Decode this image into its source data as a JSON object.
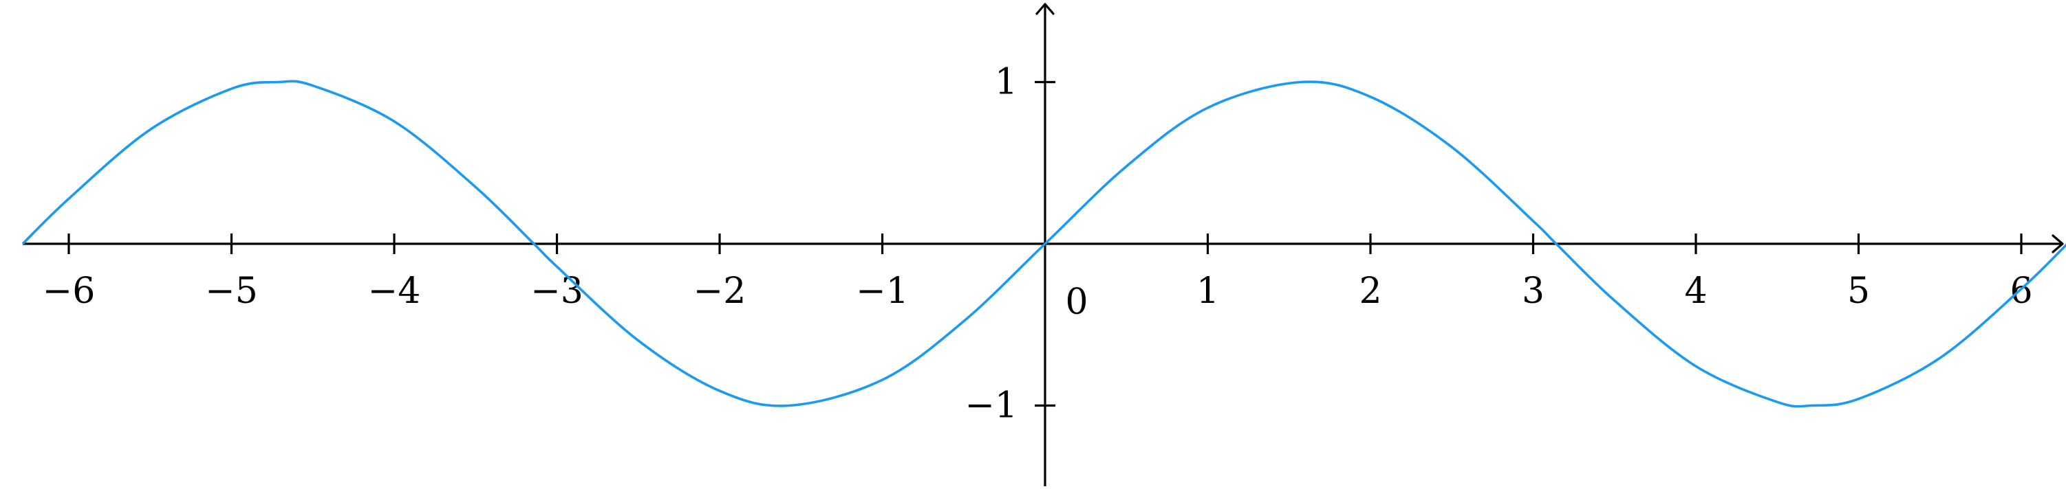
{
  "chart_data": {
    "type": "line",
    "title": "",
    "xlabel": "",
    "ylabel": "",
    "xlim": [
      -6.283185,
      6.283185
    ],
    "ylim": [
      -1.5,
      1.5
    ],
    "grid": false,
    "x_ticks": [
      {
        "value": -6,
        "label": "−6"
      },
      {
        "value": -5,
        "label": "−5"
      },
      {
        "value": -4,
        "label": "−4"
      },
      {
        "value": -3,
        "label": "−3"
      },
      {
        "value": -2,
        "label": "−2"
      },
      {
        "value": -1,
        "label": "−1"
      },
      {
        "value": 1,
        "label": "1"
      },
      {
        "value": 2,
        "label": "2"
      },
      {
        "value": 3,
        "label": "3"
      },
      {
        "value": 4,
        "label": "4"
      },
      {
        "value": 5,
        "label": "5"
      },
      {
        "value": 6,
        "label": "6"
      }
    ],
    "y_ticks": [
      {
        "value": 1,
        "label": "1"
      },
      {
        "value": -1,
        "label": "−1"
      }
    ],
    "origin_label": "0",
    "series": [
      {
        "color": "#1b9af2",
        "x": [
          -6.2832,
          -6.0,
          -5.5,
          -5.0,
          -4.7124,
          -4.5,
          -4.0,
          -3.5,
          -3.1416,
          -3.0,
          -2.5,
          -2.0,
          -1.5708,
          -1.0,
          -0.5,
          0.0,
          0.5,
          1.0,
          1.5708,
          2.0,
          2.5,
          3.0,
          3.1416,
          3.5,
          4.0,
          4.5,
          4.7124,
          5.0,
          5.5,
          6.0,
          6.2832
        ],
        "y": [
          0.0,
          0.279,
          0.706,
          0.959,
          1.0,
          0.978,
          0.757,
          0.351,
          0.0,
          -0.141,
          -0.598,
          -0.909,
          -1.0,
          -0.841,
          -0.479,
          0.0,
          0.479,
          0.841,
          1.0,
          0.909,
          0.598,
          0.141,
          0.0,
          -0.351,
          -0.757,
          -0.978,
          -1.0,
          -0.959,
          -0.706,
          -0.279,
          0.0
        ]
      }
    ]
  }
}
